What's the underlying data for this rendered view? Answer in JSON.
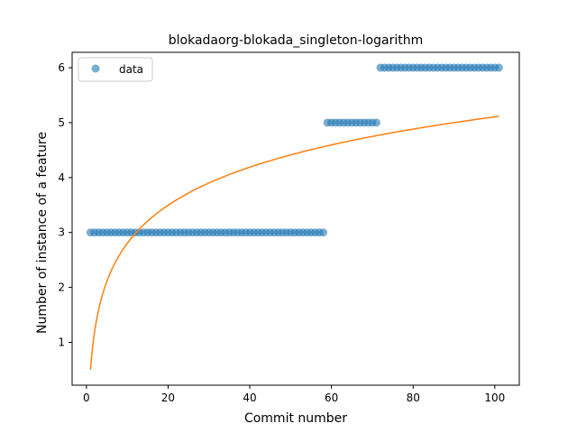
{
  "chart_data": {
    "type": "scatter",
    "title": "blokadaorg-blokada_singleton-logarithm",
    "xlabel": "Commit number",
    "ylabel": "Number of instance of a feature",
    "xlim": [
      -3.5,
      106
    ],
    "ylim": [
      0.22,
      6.28
    ],
    "xticks": [
      0,
      20,
      40,
      60,
      80,
      100
    ],
    "yticks": [
      1,
      2,
      3,
      4,
      5,
      6
    ],
    "grid": false,
    "legend_position": "top-left",
    "series": [
      {
        "name": "data",
        "kind": "scatter",
        "color": "#1f77b4",
        "segments": [
          {
            "x_from": 1,
            "x_to": 58,
            "y": 3
          },
          {
            "x_from": 59,
            "x_to": 71,
            "y": 5
          },
          {
            "x_from": 72,
            "x_to": 101,
            "y": 6
          }
        ]
      },
      {
        "kind": "line",
        "color": "#ff7f0e",
        "fit": {
          "model": "logarithmic",
          "a": 0.5,
          "b": 1.0
        },
        "x_range": [
          1,
          101
        ]
      }
    ]
  }
}
